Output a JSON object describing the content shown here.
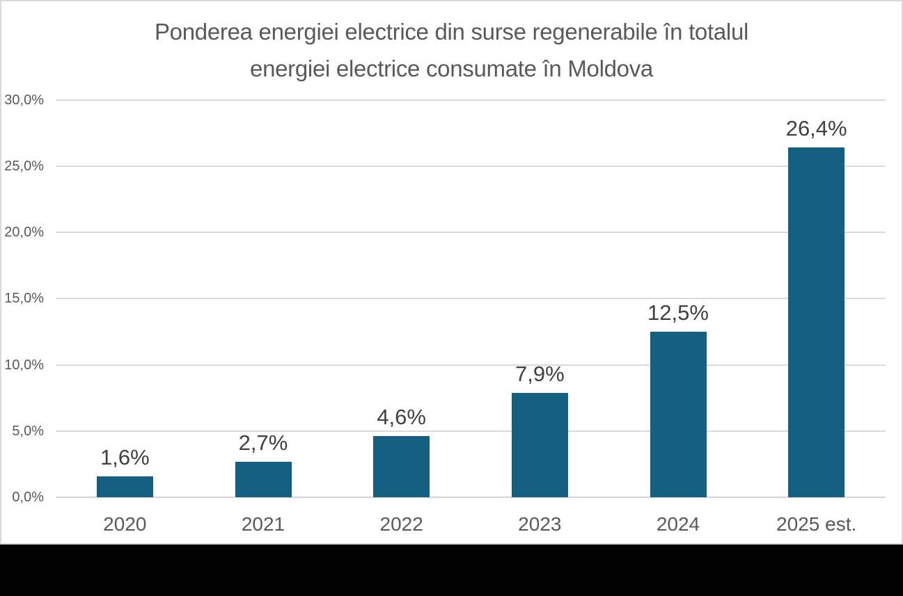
{
  "window": {
    "background_color": "#000000"
  },
  "chart_card": {
    "background_color": "#FFFFFF",
    "border_color": "#D8D8D8"
  },
  "chart_data": {
    "type": "bar",
    "title": "Ponderea energiei electrice din surse regenerabile în totalul energiei electrice consumate în Moldova",
    "title_lines": [
      "Ponderea energiei electrice din surse regenerabile în totalul",
      "energiei electrice consumate în Moldova"
    ],
    "categories": [
      "2020",
      "2021",
      "2022",
      "2023",
      "2024",
      "2025 est."
    ],
    "values": [
      1.6,
      2.7,
      4.6,
      7.9,
      12.5,
      26.4
    ],
    "data_labels": [
      "1,6%",
      "2,7%",
      "4,6%",
      "7,9%",
      "12,5%",
      "26,4%"
    ],
    "xlabel": "",
    "ylabel": "",
    "ylim": [
      0,
      30
    ],
    "y_ticks": [
      {
        "value": 0,
        "label": "0,0%"
      },
      {
        "value": 5,
        "label": "5,0%"
      },
      {
        "value": 10,
        "label": "10,0%"
      },
      {
        "value": 15,
        "label": "15,0%"
      },
      {
        "value": 20,
        "label": "20,0%"
      },
      {
        "value": 25,
        "label": "25,0%"
      },
      {
        "value": 30,
        "label": "30,0%"
      }
    ],
    "grid": true,
    "legend": "none",
    "colors": {
      "bar": "#156082",
      "title_text": "#595959",
      "axis_text": "#595959",
      "data_label_text": "#404040",
      "gridline": "#D9D9D9",
      "axis_line": "#D5D5D5"
    }
  }
}
